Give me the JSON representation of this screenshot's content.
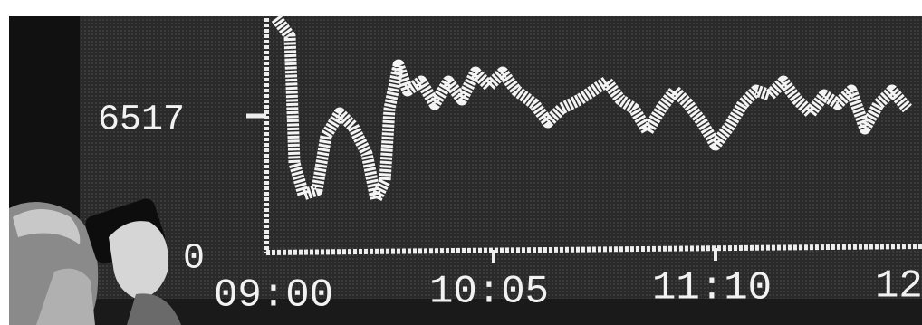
{
  "display": {
    "y_labels": [
      "6517",
      "0"
    ],
    "x_labels": [
      "09:00",
      "10:05",
      "11:10",
      "12"
    ]
  }
}
